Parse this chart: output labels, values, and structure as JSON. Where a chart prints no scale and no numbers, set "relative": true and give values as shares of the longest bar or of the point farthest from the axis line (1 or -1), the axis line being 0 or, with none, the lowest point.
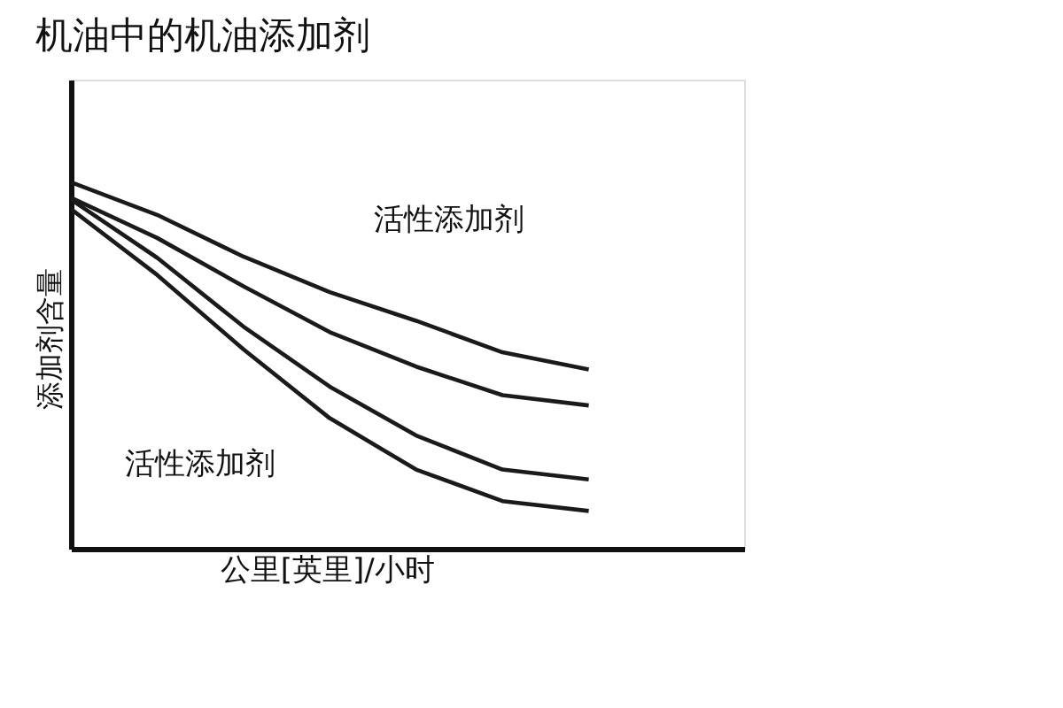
{
  "chart_data": {
    "type": "line",
    "title": "机油中的机油添加剂",
    "xlabel": "公里[英里]/小时",
    "ylabel": "添加剂含量",
    "relative": true,
    "grid": false,
    "legend": false,
    "marker": "none",
    "line_style": "solid",
    "categories": [
      null,
      null,
      null,
      null,
      null,
      null,
      null
    ],
    "series": [
      {
        "color": "#1a1a1a",
        "values": [
          1,
          0.911,
          0.797,
          0.7,
          0.622,
          0.536,
          0.489
        ]
      },
      {
        "color": "#1a1a1a",
        "values": [
          0.958,
          0.848,
          0.716,
          0.591,
          0.497,
          0.419,
          0.391
        ]
      },
      {
        "color": "#1a1a1a",
        "values": [
          0.953,
          0.794,
          0.606,
          0.442,
          0.309,
          0.216,
          0.189
        ]
      },
      {
        "color": "#1a1a1a",
        "values": [
          0.927,
          0.747,
          0.544,
          0.356,
          0.216,
          0.13,
          0.103
        ]
      }
    ],
    "annotations": [
      "活性添加剂",
      "活性添加剂"
    ]
  }
}
